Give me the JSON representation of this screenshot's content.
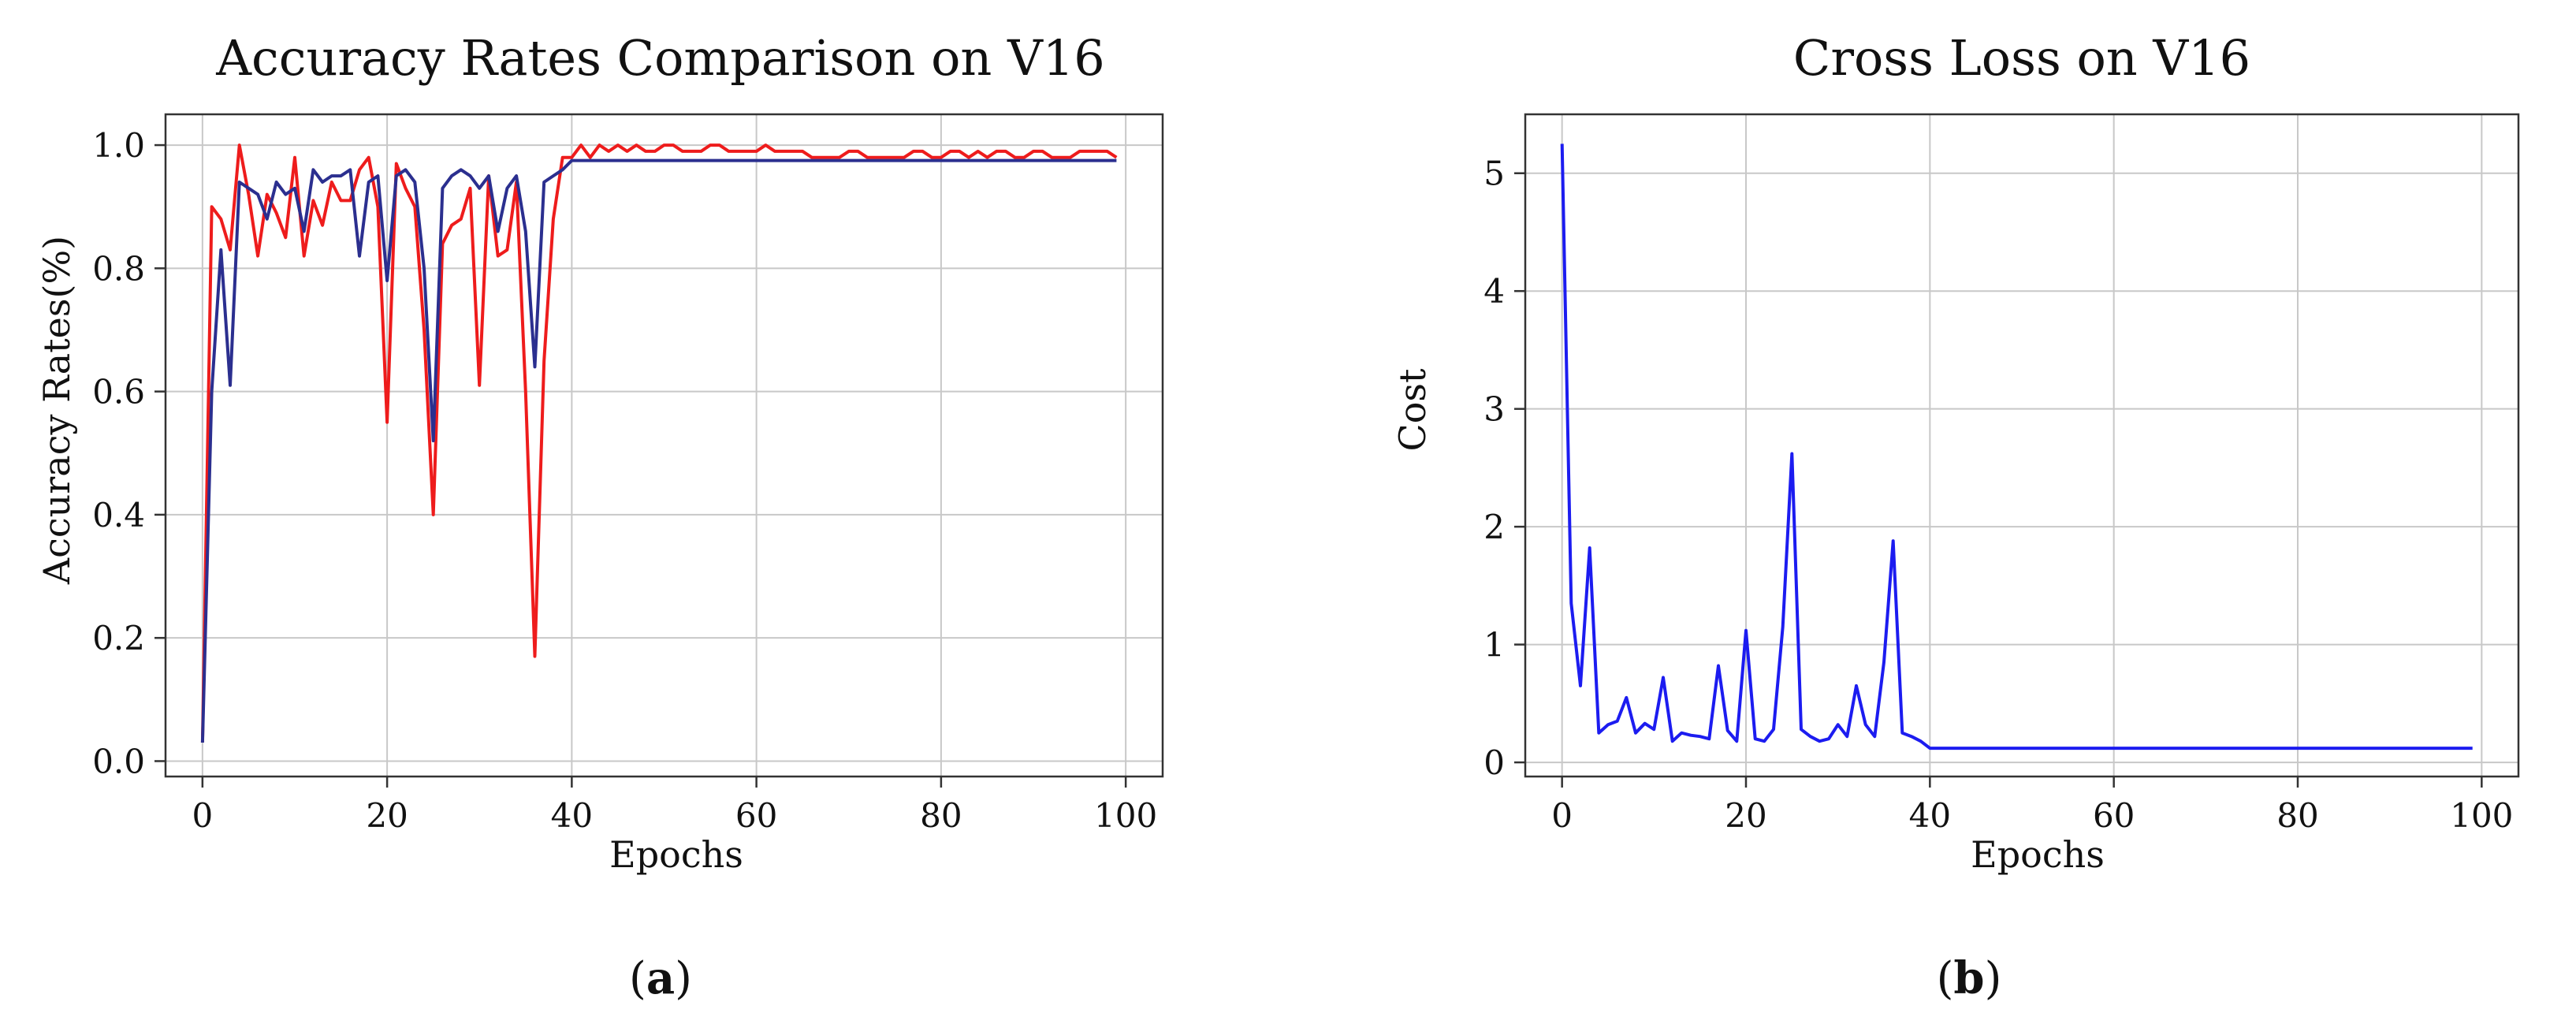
{
  "chart_data": [
    {
      "type": "line",
      "title": "Accuracy Rates Comparison on V16",
      "xlabel": "Epochs",
      "ylabel": "Accuracy  Rates(%)",
      "xlim": [
        -4,
        104
      ],
      "ylim": [
        -0.025,
        1.05
      ],
      "xticks": [
        0,
        20,
        40,
        60,
        80,
        100
      ],
      "xtick_labels": [
        "0",
        "20",
        "40",
        "60",
        "80",
        "100"
      ],
      "yticks": [
        0.0,
        0.2,
        0.4,
        0.6,
        0.8,
        1.0
      ],
      "ytick_labels": [
        "0.0",
        "0.2",
        "0.4",
        "0.6",
        "0.8",
        "1.0"
      ],
      "grid": true,
      "caption": "a",
      "series": [
        {
          "color": "#ee1c1c",
          "x": [
            0,
            1,
            2,
            3,
            4,
            5,
            6,
            7,
            8,
            9,
            10,
            11,
            12,
            13,
            14,
            15,
            16,
            17,
            18,
            19,
            20,
            21,
            22,
            23,
            24,
            25,
            26,
            27,
            28,
            29,
            30,
            31,
            32,
            33,
            34,
            35,
            36,
            37,
            38,
            39,
            40,
            41,
            42,
            43,
            44,
            45,
            46,
            47,
            48,
            49,
            50,
            51,
            52,
            53,
            54,
            55,
            56,
            57,
            58,
            59,
            60,
            61,
            62,
            63,
            64,
            65,
            66,
            67,
            68,
            69,
            70,
            71,
            72,
            73,
            74,
            75,
            76,
            77,
            78,
            79,
            80,
            81,
            82,
            83,
            84,
            85,
            86,
            87,
            88,
            89,
            90,
            91,
            92,
            93,
            94,
            95,
            96,
            97,
            98,
            99
          ],
          "y": [
            0.03,
            0.9,
            0.88,
            0.83,
            1.0,
            0.92,
            0.82,
            0.92,
            0.89,
            0.85,
            0.98,
            0.82,
            0.91,
            0.87,
            0.94,
            0.91,
            0.91,
            0.96,
            0.98,
            0.9,
            0.55,
            0.97,
            0.93,
            0.9,
            0.7,
            0.4,
            0.84,
            0.87,
            0.88,
            0.93,
            0.61,
            0.95,
            0.82,
            0.83,
            0.94,
            0.6,
            0.17,
            0.65,
            0.88,
            0.98,
            0.98,
            1.0,
            0.98,
            1.0,
            0.99,
            1.0,
            0.99,
            1.0,
            0.99,
            0.99,
            1.0,
            1.0,
            0.99,
            0.99,
            0.99,
            1.0,
            1.0,
            0.99,
            0.99,
            0.99,
            0.99,
            1.0,
            0.99,
            0.99,
            0.99,
            0.99,
            0.98,
            0.98,
            0.98,
            0.98,
            0.99,
            0.99,
            0.98,
            0.98,
            0.98,
            0.98,
            0.98,
            0.99,
            0.99,
            0.98,
            0.98,
            0.99,
            0.99,
            0.98,
            0.99,
            0.98,
            0.99,
            0.99,
            0.98,
            0.98,
            0.99,
            0.99,
            0.98,
            0.98,
            0.98,
            0.99,
            0.99,
            0.99,
            0.99,
            0.98
          ]
        },
        {
          "color": "#2b2f8f",
          "x": [
            0,
            1,
            2,
            3,
            4,
            5,
            6,
            7,
            8,
            9,
            10,
            11,
            12,
            13,
            14,
            15,
            16,
            17,
            18,
            19,
            20,
            21,
            22,
            23,
            24,
            25,
            26,
            27,
            28,
            29,
            30,
            31,
            32,
            33,
            34,
            35,
            36,
            37,
            38,
            39,
            40,
            99
          ],
          "y": [
            0.03,
            0.6,
            0.83,
            0.61,
            0.94,
            0.93,
            0.92,
            0.88,
            0.94,
            0.92,
            0.93,
            0.86,
            0.96,
            0.94,
            0.95,
            0.95,
            0.96,
            0.82,
            0.94,
            0.95,
            0.78,
            0.95,
            0.96,
            0.94,
            0.8,
            0.52,
            0.93,
            0.95,
            0.96,
            0.95,
            0.93,
            0.95,
            0.86,
            0.93,
            0.95,
            0.86,
            0.64,
            0.94,
            0.95,
            0.96,
            0.975,
            0.975
          ]
        }
      ]
    },
    {
      "type": "line",
      "title": "Cross Loss on V16",
      "xlabel": "Epochs",
      "ylabel": "Cost",
      "xlim": [
        -4,
        104
      ],
      "ylim": [
        -0.12,
        5.5
      ],
      "xticks": [
        0,
        20,
        40,
        60,
        80,
        100
      ],
      "xtick_labels": [
        "0",
        "20",
        "40",
        "60",
        "80",
        "100"
      ],
      "yticks": [
        0,
        1,
        2,
        3,
        4,
        5
      ],
      "ytick_labels": [
        "0",
        "1",
        "2",
        "3",
        "4",
        "5"
      ],
      "grid": true,
      "caption": "b",
      "series": [
        {
          "color": "#1c1cf0",
          "x": [
            0,
            1,
            2,
            3,
            4,
            5,
            6,
            7,
            8,
            9,
            10,
            11,
            12,
            13,
            14,
            15,
            16,
            17,
            18,
            19,
            20,
            21,
            22,
            23,
            24,
            25,
            26,
            27,
            28,
            29,
            30,
            31,
            32,
            33,
            34,
            35,
            36,
            37,
            38,
            39,
            40,
            99
          ],
          "y": [
            5.25,
            1.35,
            0.65,
            1.82,
            0.25,
            0.32,
            0.35,
            0.55,
            0.25,
            0.33,
            0.28,
            0.72,
            0.18,
            0.25,
            0.23,
            0.22,
            0.2,
            0.82,
            0.27,
            0.18,
            1.12,
            0.2,
            0.18,
            0.28,
            1.15,
            2.62,
            0.28,
            0.22,
            0.18,
            0.2,
            0.32,
            0.22,
            0.65,
            0.32,
            0.22,
            0.85,
            1.88,
            0.25,
            0.22,
            0.18,
            0.12,
            0.12
          ]
        }
      ]
    }
  ]
}
